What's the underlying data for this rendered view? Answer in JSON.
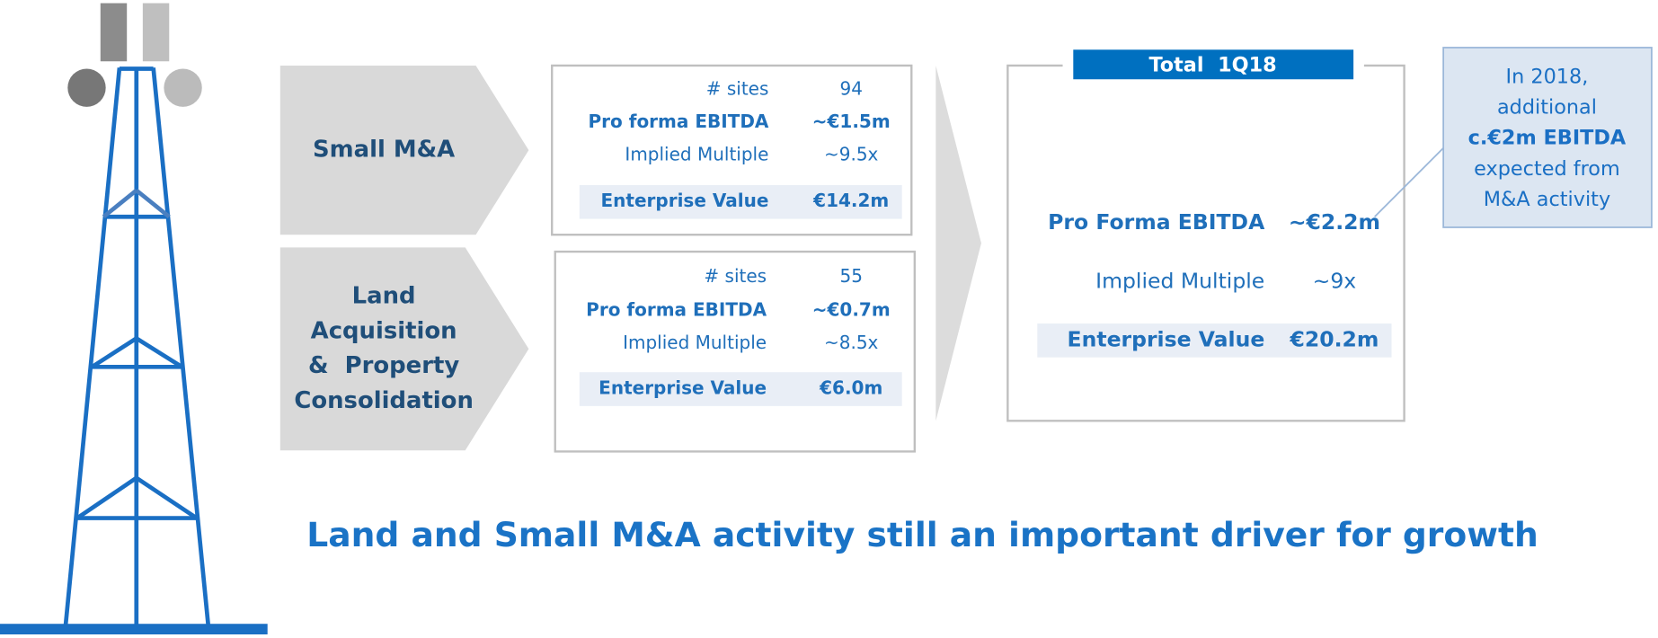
{
  "segments": [
    {
      "label": [
        "Small M&A"
      ],
      "rows": [
        {
          "label": "# sites",
          "value": "94"
        },
        {
          "label": "Pro forma EBITDA",
          "value": "~€1.5m"
        },
        {
          "label": "Implied Multiple",
          "value": "~9.5x"
        }
      ],
      "ev": {
        "label": "Enterprise Value",
        "value": "€14.2m"
      }
    },
    {
      "label": [
        "Land",
        "Acquisition",
        "&  Property",
        "Consolidation"
      ],
      "rows": [
        {
          "label": "# sites",
          "value": "55"
        },
        {
          "label": "Pro forma EBITDA",
          "value": "~€0.7m"
        },
        {
          "label": "Implied Multiple",
          "value": "~8.5x"
        }
      ],
      "ev": {
        "label": "Enterprise Value",
        "value": "€6.0m"
      }
    }
  ],
  "total": {
    "title": "Total  1Q18",
    "rows": [
      {
        "label": "Pro Forma EBITDA",
        "value": "~€2.2m"
      },
      {
        "label": "Implied Multiple",
        "value": "~9x"
      }
    ],
    "ev": {
      "label": "Enterprise Value",
      "value": "€20.2m"
    }
  },
  "note": [
    "In 2018,",
    "additional",
    "c.€2m EBITDA",
    "expected from",
    "M&A activity"
  ],
  "headline": "Land and Small M&A activity still an important driver for growth"
}
